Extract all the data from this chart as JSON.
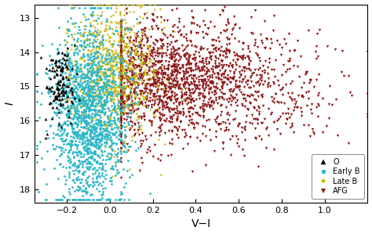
{
  "title": "",
  "xlabel": "V−I",
  "ylabel": "I",
  "xlim": [
    -0.35,
    1.2
  ],
  "ylim": [
    18.4,
    12.6
  ],
  "legend_labels": [
    "O",
    "Early B",
    "Late B",
    "AFG"
  ],
  "o_color": "black",
  "earlyb_color": "#29b6c8",
  "lateb_color": "#c8b400",
  "afg_color": "#8b1414",
  "seed": 42,
  "n_o": 130,
  "n_earlyb": 1600,
  "n_lateb": 850,
  "n_afg": 2034,
  "background_color": "#ffffff",
  "xticks": [
    -0.2,
    0.0,
    0.2,
    0.4,
    0.6,
    0.8,
    1.0
  ],
  "yticks": [
    13,
    14,
    15,
    16,
    17,
    18
  ],
  "marker_size_o": 7,
  "marker_size_earlyb": 4,
  "marker_size_lateb": 9,
  "marker_size_afg": 6
}
